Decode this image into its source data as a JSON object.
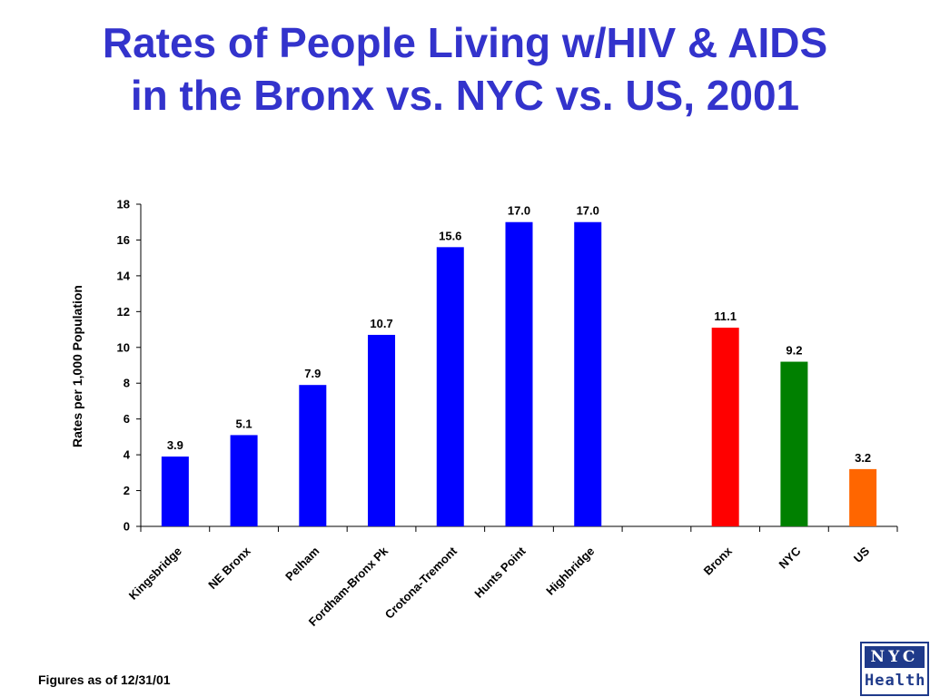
{
  "title": {
    "line1": "Rates of People Living w/HIV & AIDS",
    "line2": "in the Bronx vs. NYC vs. US, 2001"
  },
  "footnote": "Figures as of 12/31/01",
  "logo": {
    "top": "NYC",
    "bottom": "Health"
  },
  "colors": {
    "title": "#3333cc",
    "neighborhood_bar": "#0000ff",
    "bronx_bar": "#ff0000",
    "nyc_bar": "#008000",
    "us_bar": "#ff6600",
    "logo": "#1f3a8a"
  },
  "chart_data": {
    "type": "bar",
    "title": "",
    "xlabel": "",
    "ylabel": "Rates per 1,000 Population",
    "ylim": [
      0,
      18
    ],
    "yticks": [
      0,
      2,
      4,
      6,
      8,
      10,
      12,
      14,
      16,
      18
    ],
    "grid": false,
    "legend": "none",
    "categories": [
      "Kingsbridge",
      "NE Bronx",
      "Pelham",
      "Fordham-Bronx Pk",
      "Crotona-Tremont",
      "Hunts Point",
      "Highbridge",
      "",
      "Bronx",
      "NYC",
      "US"
    ],
    "values": [
      3.9,
      5.1,
      7.9,
      10.7,
      15.6,
      17.0,
      17.0,
      null,
      11.1,
      9.2,
      3.2
    ],
    "value_labels": [
      "3.9",
      "5.1",
      "7.9",
      "10.7",
      "15.6",
      "17.0",
      "17.0",
      "",
      "11.1",
      "9.2",
      "3.2"
    ],
    "bar_colors": [
      "#0000ff",
      "#0000ff",
      "#0000ff",
      "#0000ff",
      "#0000ff",
      "#0000ff",
      "#0000ff",
      "",
      "#ff0000",
      "#008000",
      "#ff6600"
    ]
  }
}
